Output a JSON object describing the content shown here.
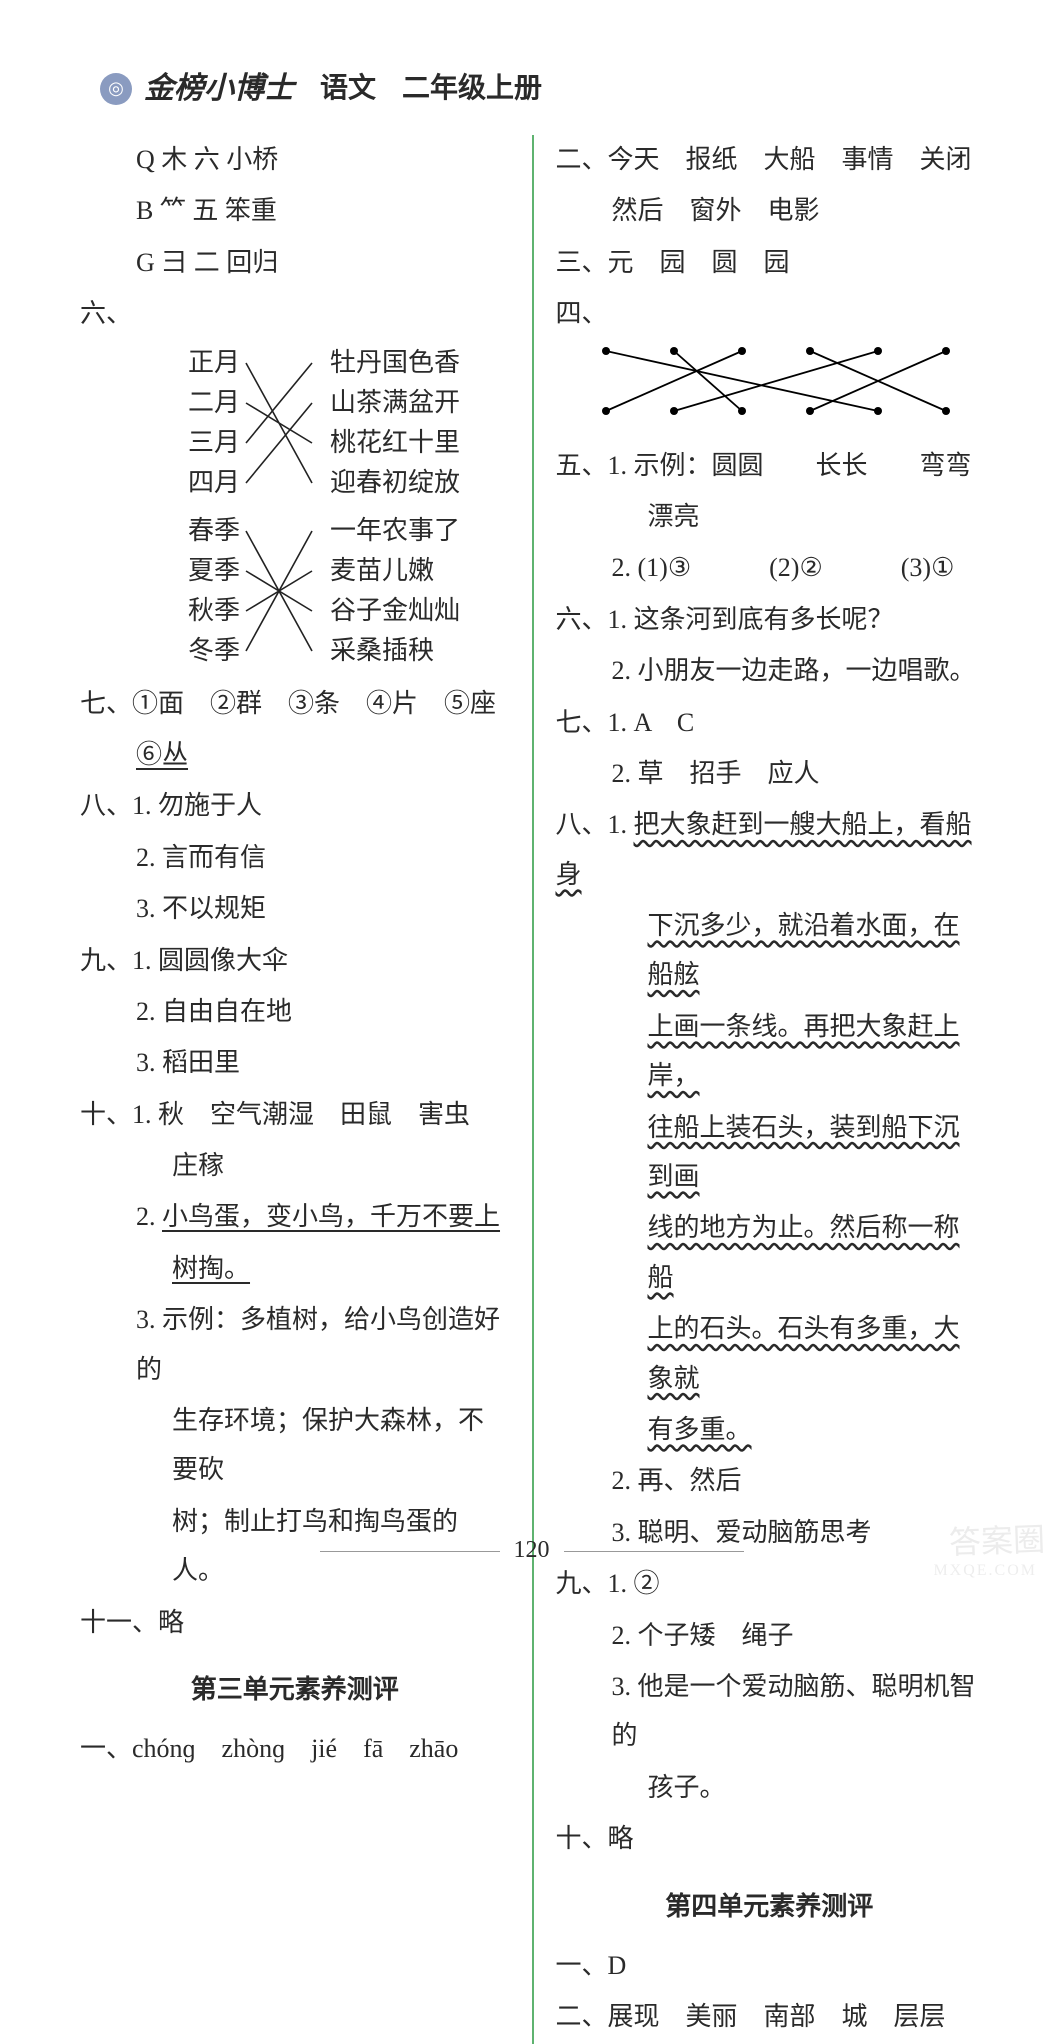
{
  "header": {
    "logo": "◎",
    "title": "金榜小博士",
    "subject": "语文",
    "grade": "二年级上册"
  },
  "left": {
    "rowQ": "Q 木 六 小桥",
    "rowB": "B ⺮ 五 笨重",
    "rowG": "G 彐 二 回归",
    "six_label": "六、",
    "match1": {
      "left": [
        "正月",
        "二月",
        "三月",
        "四月"
      ],
      "right": [
        "牡丹国色香",
        "山茶满盆开",
        "桃花红十里",
        "迎春初绽放"
      ],
      "edges": [
        [
          0,
          3
        ],
        [
          1,
          2
        ],
        [
          2,
          0
        ],
        [
          3,
          1
        ]
      ],
      "line_color": "#222222"
    },
    "match2": {
      "left": [
        "春季",
        "夏季",
        "秋季",
        "冬季"
      ],
      "right": [
        "一年农事了",
        "麦苗儿嫩",
        "谷子金灿灿",
        "采桑插秧"
      ],
      "edges": [
        [
          0,
          3
        ],
        [
          1,
          2
        ],
        [
          2,
          1
        ],
        [
          3,
          0
        ]
      ],
      "line_color": "#222222"
    },
    "seven": "七、①面　②群　③条　④片　⑤座",
    "seven_b": "⑥丛",
    "eight1": "八、1. 勿施于人",
    "eight2": "2. 言而有信",
    "eight3": "3. 不以规矩",
    "nine1": "九、1. 圆圆像大伞",
    "nine2": "2. 自由自在地",
    "nine3": "3. 稻田里",
    "ten1a": "十、1. 秋　空气潮湿　田鼠　害虫",
    "ten1b": "庄稼",
    "ten2a": "2. 小鸟蛋，变小鸟，千万不要上",
    "ten2b": "树掏。",
    "ten3a": "3. 示例：多植树，给小鸟创造好的",
    "ten3b": "生存环境；保护大森林，不要砍",
    "ten3c": "树；制止打鸟和掏鸟蛋的人。",
    "eleven": "十一、略",
    "section3": "第三单元素养测评",
    "s3_one": "一、chónɡ　zhònɡ　jié　fā　zhāo"
  },
  "right": {
    "two_a": "二、今天　报纸　大船　事情　关闭",
    "two_b": "然后　窗外　电影",
    "three": "三、元　园　圆　园",
    "four_label": "四、",
    "four_match": {
      "top_count": 6,
      "bottom_count": 6,
      "edges": [
        [
          0,
          4
        ],
        [
          1,
          2
        ],
        [
          2,
          0
        ],
        [
          3,
          5
        ],
        [
          4,
          1
        ],
        [
          5,
          3
        ]
      ],
      "dot_color": "#000000",
      "line_color": "#000000"
    },
    "five1": "五、1. 示例：圆圆　　长长　　弯弯",
    "five1b": "漂亮",
    "five2": "2. (1)③　　　(2)②　　　(3)①",
    "six1": "六、1. 这条河到底有多长呢？",
    "six2": "2. 小朋友一边走路，一边唱歌。",
    "seven1": "七、1. A　C",
    "seven2": "2. 草　招手　应人",
    "eight_pre": "八、1. ",
    "eight_w1": "把大象赶到一艘大船上，看船身",
    "eight_w2": "下沉多少，就沿着水面，在船舷",
    "eight_w3": "上画一条线。再把大象赶上岸，",
    "eight_w4": "往船上装石头，装到船下沉到画",
    "eight_w5": "线的地方为止。然后称一称船",
    "eight_w6": "上的石头。石头有多重，大象就",
    "eight_w7": "有多重。",
    "eight2": "2. 再、然后",
    "eight3": "3. 聪明、爱动脑筋思考",
    "nine1": "九、1. ②",
    "nine2": "2. 个子矮　绳子",
    "nine3a": "3. 他是一个爱动脑筋、聪明机智的",
    "nine3b": "孩子。",
    "ten": "十、略",
    "section4": "第四单元素养测评",
    "s4_one": "一、D",
    "s4_two": "二、展现　美丽　南部　城　层层"
  },
  "footer": "120",
  "watermark": "答案圈",
  "watermark_url": "MXQE.COM",
  "colors": {
    "divider": "#5fb370",
    "text": "#2a2a2a",
    "header_logo_bg": "#8a9bc0"
  }
}
